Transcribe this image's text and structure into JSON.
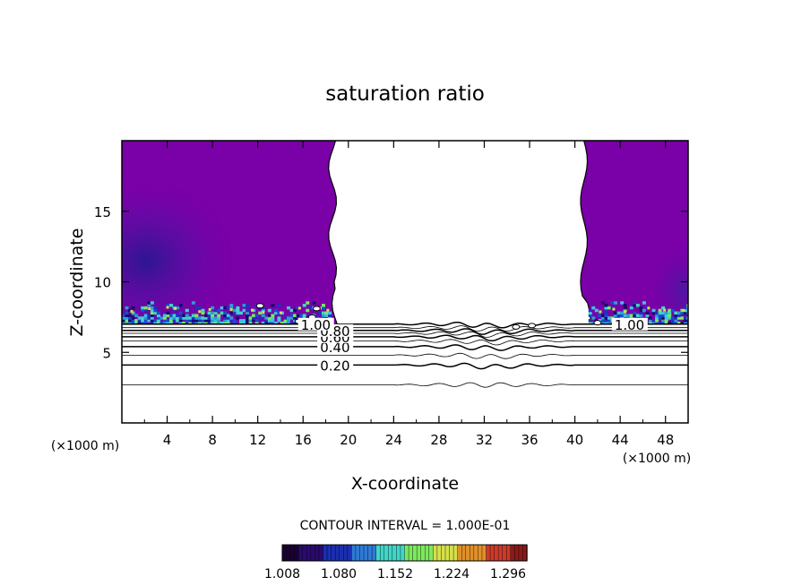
{
  "chart_data": {
    "type": "heatmap",
    "title": "saturation ratio",
    "xlabel": "X-coordinate",
    "ylabel": "Z-coordinate",
    "x_unit": "(×1000 m)",
    "y_unit": "(×1000 m)",
    "xlim": [
      0,
      50
    ],
    "ylim": [
      0,
      20
    ],
    "x_ticks": [
      4,
      8,
      12,
      16,
      20,
      24,
      28,
      32,
      36,
      40,
      44,
      48
    ],
    "y_ticks": [
      5,
      10,
      15
    ],
    "contour_interval_text": "CONTOUR INTERVAL = 1.000E-01",
    "contour_lines": [
      {
        "level": 0.1,
        "z": 2.7
      },
      {
        "level": 0.2,
        "z": 4.1
      },
      {
        "level": 0.3,
        "z": 4.8
      },
      {
        "level": 0.4,
        "z": 5.4
      },
      {
        "level": 0.5,
        "z": 5.8
      },
      {
        "level": 0.6,
        "z": 6.1
      },
      {
        "level": 0.7,
        "z": 6.35
      },
      {
        "level": 0.8,
        "z": 6.55
      },
      {
        "level": 0.9,
        "z": 6.75
      },
      {
        "level": 1.0,
        "z": 7.0
      }
    ],
    "contour_labels": [
      {
        "text": "0.20",
        "x": 17.5,
        "z": 4.1
      },
      {
        "text": "0.40",
        "x": 17.5,
        "z": 5.4
      },
      {
        "text": "0.60",
        "x": 17.5,
        "z": 6.1
      },
      {
        "text": "0.80",
        "x": 17.5,
        "z": 6.55
      },
      {
        "text": "1.00",
        "x": 15.8,
        "z": 7.0
      },
      {
        "text": "1.00",
        "x": 43.5,
        "z": 7.0
      }
    ],
    "colorbar": {
      "tick_labels": [
        "1.008",
        "1.080",
        "1.152",
        "1.224",
        "1.296"
      ],
      "min": 1.008,
      "max": 1.32,
      "colors": [
        "#1a0033",
        "#2a0a6e",
        "#1a2fb0",
        "#2e7ad6",
        "#3fd6c8",
        "#7ee85e",
        "#d6e04a",
        "#e0902a",
        "#cc3a2a",
        "#8a1a1a"
      ]
    },
    "fill_color": "#7a00a8",
    "regions": [
      {
        "name": "left-cloud",
        "x_range": [
          0,
          19
        ],
        "z_range": [
          7.0,
          20
        ]
      },
      {
        "name": "right-cloud",
        "x_range": [
          40.5,
          50
        ],
        "z_range": [
          7.0,
          20
        ]
      }
    ]
  }
}
